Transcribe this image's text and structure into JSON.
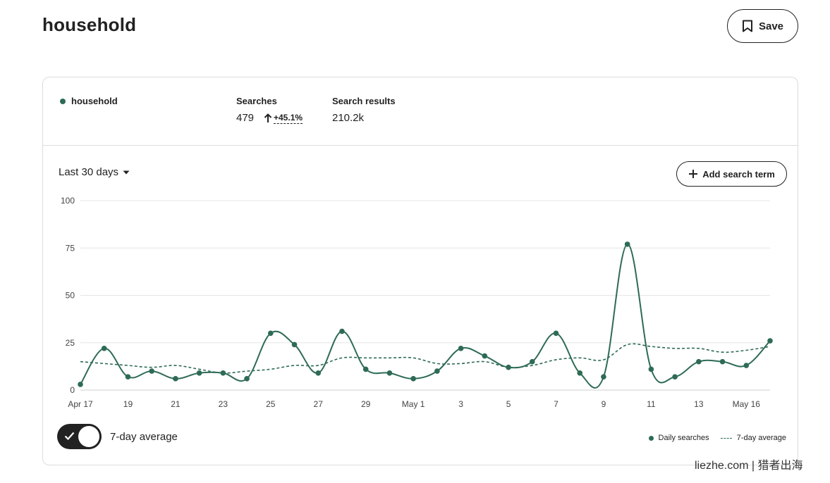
{
  "header": {
    "title": "household",
    "save_label": "Save"
  },
  "summary": {
    "term": "household",
    "searches_label": "Searches",
    "searches_value": "479",
    "searches_change": "+45.1%",
    "results_label": "Search results",
    "results_value": "210.2k"
  },
  "controls": {
    "range_label": "Last 30 days",
    "add_term_label": "Add search term",
    "toggle_label": "7-day average",
    "toggle_on": true
  },
  "legend": {
    "daily": "Daily searches",
    "average": "7-day average"
  },
  "watermark": "liezhe.com | 猎者出海",
  "colors": {
    "series": "#2e6b54",
    "grid": "#e5e5e5",
    "text": "#222222"
  },
  "chart_data": {
    "type": "line",
    "x_ticks": [
      "Apr 17",
      "19",
      "21",
      "23",
      "25",
      "27",
      "29",
      "May 1",
      "3",
      "5",
      "7",
      "9",
      "11",
      "13",
      "May 16"
    ],
    "y_ticks": [
      "100",
      "75",
      "50",
      "25",
      "0"
    ],
    "ylim": [
      0,
      100
    ],
    "grid": true,
    "legend_position": "bottom-right",
    "x": [
      "Apr 17",
      "Apr 18",
      "Apr 19",
      "Apr 20",
      "Apr 21",
      "Apr 22",
      "Apr 23",
      "Apr 24",
      "Apr 25",
      "Apr 26",
      "Apr 27",
      "Apr 28",
      "Apr 29",
      "Apr 30",
      "May 1",
      "May 2",
      "May 3",
      "May 4",
      "May 5",
      "May 6",
      "May 7",
      "May 8",
      "May 9",
      "May 10",
      "May 11",
      "May 12",
      "May 13",
      "May 14",
      "May 15",
      "May 16"
    ],
    "series": [
      {
        "name": "Daily searches",
        "style": "solid-with-markers",
        "values": [
          3,
          22,
          7,
          10,
          6,
          9,
          9,
          6,
          30,
          24,
          9,
          31,
          11,
          9,
          6,
          10,
          22,
          18,
          12,
          15,
          30,
          9,
          7,
          77,
          11,
          7,
          15,
          15,
          13,
          26
        ]
      },
      {
        "name": "7-day average",
        "style": "dashed",
        "values": [
          15,
          14,
          13,
          12,
          13,
          11,
          9,
          10,
          11,
          13,
          13,
          17,
          17,
          17,
          17,
          14,
          14,
          15,
          12,
          13,
          16,
          17,
          16,
          24,
          23,
          22,
          22,
          20,
          21,
          23
        ]
      }
    ]
  }
}
